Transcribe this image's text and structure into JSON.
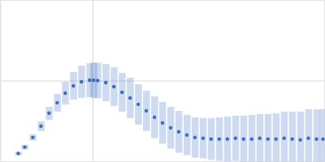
{
  "chart_data": {
    "type": "scatter",
    "x": [
      0.0193,
      0.0263,
      0.035,
      0.0438,
      0.0525,
      0.0613,
      0.07,
      0.0788,
      0.0875,
      0.0963,
      0.1006,
      0.105,
      0.1138,
      0.1225,
      0.1313,
      0.14,
      0.1488,
      0.1575,
      0.1663,
      0.175,
      0.1838,
      0.1925,
      0.2013,
      0.21,
      0.2188,
      0.2275,
      0.2363,
      0.245,
      0.2538,
      0.2625,
      0.2713,
      0.28,
      0.2888,
      0.2975,
      0.3063,
      0.315,
      0.3238,
      0.3325,
      0.3413,
      0.3483
    ],
    "series": [
      {
        "color": "#3a6bbf",
        "marker": "circle",
        "values": [
          0.1,
          0.18,
          0.3,
          0.44,
          0.6,
          0.73,
          0.85,
          0.94,
          0.99,
          1.01,
          1.01,
          1.005,
          0.98,
          0.93,
          0.86,
          0.79,
          0.71,
          0.63,
          0.55,
          0.48,
          0.42,
          0.37,
          0.33,
          0.3,
          0.29,
          0.28,
          0.28,
          0.28,
          0.29,
          0.28,
          0.28,
          0.29,
          0.28,
          0.28,
          0.29,
          0.28,
          0.27,
          0.29,
          0.28,
          0.28
        ],
        "errors": [
          0.02,
          0.03,
          0.04,
          0.06,
          0.08,
          0.11,
          0.14,
          0.17,
          0.2,
          0.21,
          0.22,
          0.22,
          0.23,
          0.24,
          0.24,
          0.25,
          0.25,
          0.25,
          0.26,
          0.26,
          0.26,
          0.26,
          0.25,
          0.25,
          0.25,
          0.26,
          0.27,
          0.28,
          0.28,
          0.29,
          0.3,
          0.3,
          0.31,
          0.32,
          0.33,
          0.34,
          0.35,
          0.36,
          0.37,
          0.37
        ]
      }
    ],
    "xlim": [
      0,
      0.35
    ],
    "ylim": [
      0,
      2
    ],
    "xticks": [
      0.1
    ],
    "yticks": [
      1
    ],
    "grid": true,
    "tick_labels": false
  }
}
